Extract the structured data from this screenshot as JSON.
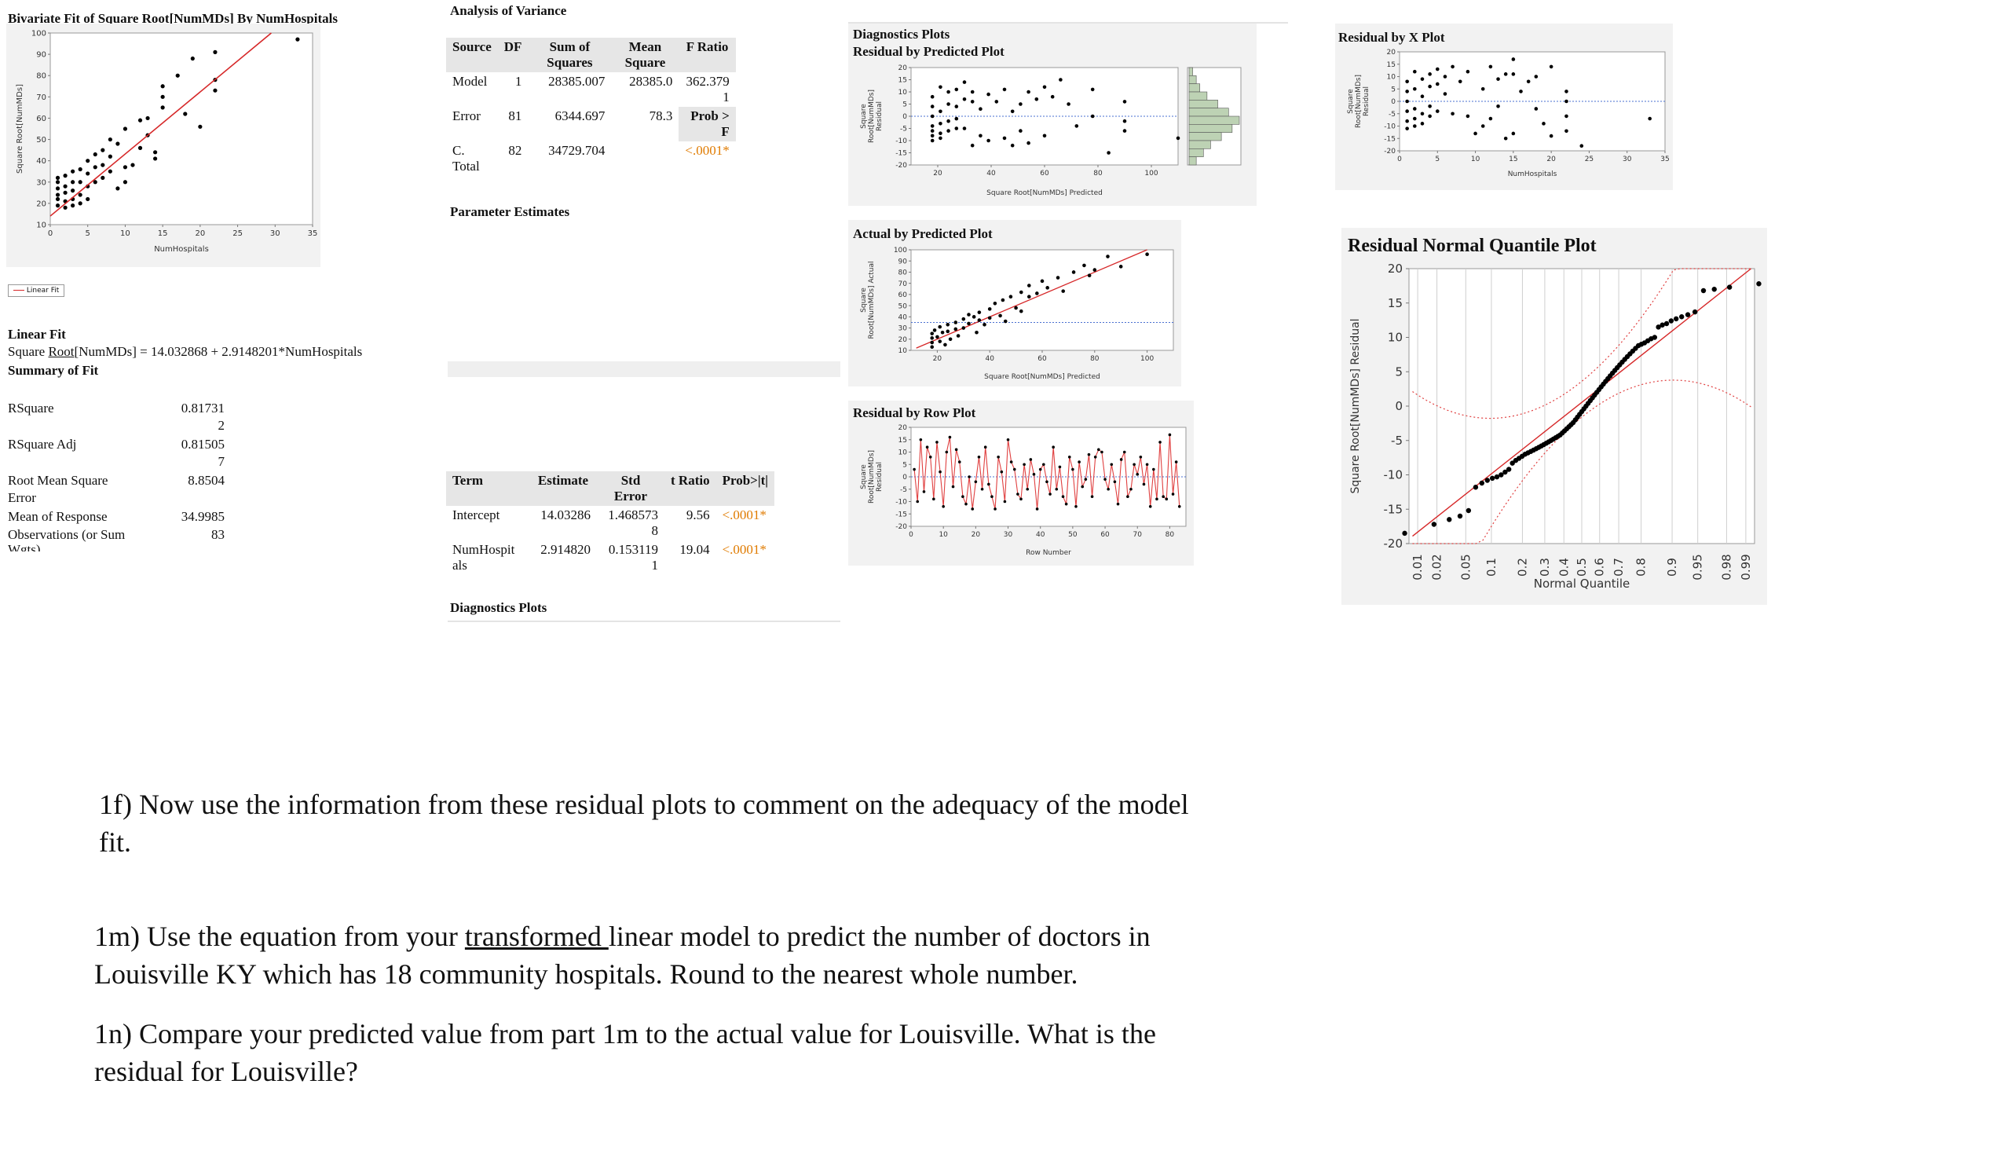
{
  "bivariate": {
    "title_pre": "Bivariate Fit of Square ",
    "title_root": "Root",
    "title_post": "[NumMDs] By NumHospitals",
    "ylabel": "Square Root[NumMDs]",
    "xlabel": "NumHospitals",
    "legend": "Linear Fit"
  },
  "linear_fit": {
    "heading": "Linear Fit",
    "eq_pre": "Square ",
    "eq_root": "Root",
    "eq_post": "[NumMDs] = 14.032868 + 2.9148201*NumHospitals",
    "summary_heading": "Summary of Fit"
  },
  "summary_of_fit": [
    {
      "label": "RSquare",
      "value": "0.81731",
      "value2": "2"
    },
    {
      "label": "RSquare Adj",
      "value": "0.81505",
      "value2": "7"
    },
    {
      "label": "Root Mean Square",
      "label2": "Error",
      "value": "8.8504"
    },
    {
      "label": "Mean of Response",
      "value": "34.9985"
    },
    {
      "label": "Observations (or Sum",
      "label2": "Wgts)",
      "value": "83"
    }
  ],
  "anova": {
    "title": "Analysis of Variance",
    "headers": [
      "Source",
      "DF",
      "Sum of Squares",
      "Mean Square",
      "F Ratio"
    ],
    "rows": [
      {
        "source": "Model",
        "df": "1",
        "ss": "28385.007",
        "ms": "28385.0",
        "f": "362.379",
        "f2": "1"
      },
      {
        "source": "Error",
        "df": "81",
        "ss": "6344.697",
        "ms": "78.3",
        "f": "Prob >",
        "f2": "F"
      },
      {
        "source": "C.",
        "source2": "Total",
        "df": "82",
        "ss": "34729.704",
        "ms": "",
        "f": "<.0001*"
      }
    ]
  },
  "param_title": "Parameter Estimates",
  "params": {
    "headers": [
      "Term",
      "Estimate",
      "Std Error",
      "t Ratio",
      "Prob>|t|"
    ],
    "rows": [
      {
        "term": "Intercept",
        "est": "14.03286",
        "se": "1.468573",
        "se2": "8",
        "t": "9.56",
        "p": "<.0001*"
      },
      {
        "term": "NumHospit",
        "term2": "als",
        "est": "2.914820",
        "se": "0.153119",
        "se2": "1",
        "t": "19.04",
        "p": "<.0001*"
      }
    ]
  },
  "diag_title_bottom": "Diagnostics Plots",
  "diag": {
    "title": "Diagnostics Plots",
    "res_pred_title": "Residual by Predicted Plot",
    "res_pred_ylabel": [
      "Square",
      "Root[NumMDs]",
      "Residual"
    ],
    "res_pred_xlabel": "Square Root[NumMDs] Predicted",
    "act_pred_title": "Actual by Predicted Plot",
    "act_pred_ylabel": [
      "Square",
      "Root[NumMDs] Actual"
    ],
    "act_pred_xlabel": "Square Root[NumMDs] Predicted",
    "res_row_title": "Residual by Row Plot",
    "res_row_ylabel": [
      "Square",
      "Root[NumMDs]",
      "Residual"
    ],
    "res_row_xlabel": "Row Number"
  },
  "res_x": {
    "title": "Residual by X Plot",
    "ylabel": [
      "Square",
      "Root[NumMDs]",
      "Residual"
    ],
    "xlabel": "NumHospitals"
  },
  "nq": {
    "title": "Residual Normal Quantile Plot",
    "ylabel": "Square Root[NumMDs] Residual",
    "xlabel": "Normal Quantile",
    "probs": [
      "0.01",
      "0.02",
      "0.05",
      "0.1",
      "0.2",
      "0.3",
      "0.4",
      "0.5",
      "0.6",
      "0.7",
      "0.8",
      "0.9",
      "0.95",
      "0.98",
      "0.99"
    ]
  },
  "questions": {
    "q1f_a": "1f) Now use the information from these residual plots to comment on the adequacy of the model",
    "q1f_b": "fit.",
    "q1m_a1": "1m) Use the equation from your ",
    "q1m_a2": "transformed ",
    "q1m_a3": "linear model to predict the number of doctors in",
    "q1m_b": "Louisville KY which has 18 community hospitals. Round to the nearest whole number.",
    "q1n_a": "1n) Compare your predicted value from part 1m to the actual value for Louisville. What is the",
    "q1n_b": "residual for Louisville?"
  },
  "chart_data": [
    {
      "type": "scatter",
      "ylabel": "Square Root[NumMDs]",
      "xlabel": "NumHospitals",
      "xlim": [
        0,
        35
      ],
      "ylim": [
        10,
        100
      ],
      "xticks": [
        0,
        5,
        10,
        15,
        20,
        25,
        30,
        35
      ],
      "yticks": [
        10,
        20,
        30,
        40,
        50,
        60,
        70,
        80,
        90,
        100
      ],
      "fit": {
        "intercept": 14.032868,
        "slope": 2.9148201
      },
      "points": [
        [
          1,
          32
        ],
        [
          1,
          30
        ],
        [
          1,
          27
        ],
        [
          1,
          24
        ],
        [
          1,
          22
        ],
        [
          1,
          19
        ],
        [
          2,
          33
        ],
        [
          2,
          28
        ],
        [
          2,
          25
        ],
        [
          2,
          21
        ],
        [
          2,
          18
        ],
        [
          3,
          35
        ],
        [
          3,
          30
        ],
        [
          3,
          26
        ],
        [
          3,
          22
        ],
        [
          3,
          19
        ],
        [
          4,
          36
        ],
        [
          4,
          30
        ],
        [
          4,
          24
        ],
        [
          4,
          20
        ],
        [
          5,
          40
        ],
        [
          5,
          34
        ],
        [
          5,
          28
        ],
        [
          5,
          22
        ],
        [
          6,
          43
        ],
        [
          6,
          37
        ],
        [
          6,
          30
        ],
        [
          7,
          45
        ],
        [
          7,
          38
        ],
        [
          7,
          32
        ],
        [
          8,
          50
        ],
        [
          8,
          42
        ],
        [
          8,
          35
        ],
        [
          9,
          48
        ],
        [
          9,
          27
        ],
        [
          10,
          55
        ],
        [
          10,
          37
        ],
        [
          10,
          30
        ],
        [
          11,
          38
        ],
        [
          12,
          59
        ],
        [
          12,
          46
        ],
        [
          13,
          60
        ],
        [
          13,
          52
        ],
        [
          14,
          44
        ],
        [
          14,
          41
        ],
        [
          15,
          75
        ],
        [
          15,
          70
        ],
        [
          15,
          65
        ],
        [
          17,
          80
        ],
        [
          18,
          62
        ],
        [
          19,
          88
        ],
        [
          20,
          56
        ],
        [
          22,
          78
        ],
        [
          22,
          73
        ],
        [
          22,
          91
        ],
        [
          33,
          97
        ]
      ]
    },
    {
      "type": "scatter",
      "title": "Residual by Predicted Plot",
      "xlabel": "Square Root[NumMDs] Predicted",
      "ylabel": "Square Root[NumMDs] Residual",
      "xlim": [
        10,
        110
      ],
      "ylim": [
        -20,
        20
      ],
      "xticks": [
        20,
        40,
        60,
        80,
        100
      ],
      "yticks": [
        -20,
        -15,
        -10,
        -5,
        0,
        5,
        10,
        15,
        20
      ],
      "points": [
        [
          18,
          8
        ],
        [
          18,
          4
        ],
        [
          18,
          0
        ],
        [
          18,
          -4
        ],
        [
          18,
          -6
        ],
        [
          18,
          -8
        ],
        [
          18,
          -10
        ],
        [
          21,
          12
        ],
        [
          21,
          2
        ],
        [
          21,
          -3
        ],
        [
          21,
          -7
        ],
        [
          21,
          -9
        ],
        [
          24,
          10
        ],
        [
          24,
          5
        ],
        [
          24,
          -2
        ],
        [
          24,
          -6
        ],
        [
          27,
          11
        ],
        [
          27,
          4
        ],
        [
          27,
          -1
        ],
        [
          27,
          -5
        ],
        [
          30,
          14
        ],
        [
          30,
          7
        ],
        [
          30,
          -5
        ],
        [
          33,
          10
        ],
        [
          33,
          6
        ],
        [
          33,
          -12
        ],
        [
          36,
          3
        ],
        [
          36,
          -8
        ],
        [
          39,
          9
        ],
        [
          39,
          -10
        ],
        [
          42,
          6
        ],
        [
          45,
          11
        ],
        [
          45,
          -9
        ],
        [
          48,
          2
        ],
        [
          48,
          -12
        ],
        [
          51,
          5
        ],
        [
          51,
          -6
        ],
        [
          54,
          10
        ],
        [
          54,
          -11
        ],
        [
          57,
          7
        ],
        [
          60,
          12
        ],
        [
          60,
          -8
        ],
        [
          63,
          8
        ],
        [
          66,
          15
        ],
        [
          69,
          5
        ],
        [
          72,
          -4
        ],
        [
          78,
          11
        ],
        [
          78,
          0
        ],
        [
          84,
          -15
        ],
        [
          90,
          6
        ],
        [
          90,
          -2
        ],
        [
          90,
          -6
        ],
        [
          110,
          -9
        ]
      ],
      "histogram_counts": [
        1,
        2,
        3,
        5,
        8,
        11,
        14,
        12,
        9,
        6,
        4,
        2
      ]
    },
    {
      "type": "scatter",
      "title": "Actual by Predicted Plot",
      "xlabel": "Square Root[NumMDs] Predicted",
      "ylabel": "Square Root[NumMDs] Actual",
      "xlim": [
        10,
        110
      ],
      "ylim": [
        10,
        100
      ],
      "xticks": [
        20,
        40,
        60,
        80,
        100
      ],
      "yticks": [
        10,
        20,
        30,
        40,
        50,
        60,
        70,
        80,
        90,
        100
      ],
      "mean_line": 35,
      "points": [
        [
          18,
          25
        ],
        [
          18,
          21
        ],
        [
          18,
          17
        ],
        [
          18,
          13
        ],
        [
          19,
          28
        ],
        [
          20,
          22
        ],
        [
          21,
          31
        ],
        [
          21,
          18
        ],
        [
          22,
          26
        ],
        [
          23,
          15
        ],
        [
          24,
          33
        ],
        [
          24,
          27
        ],
        [
          25,
          20
        ],
        [
          27,
          35
        ],
        [
          27,
          29
        ],
        [
          28,
          23
        ],
        [
          30,
          38
        ],
        [
          30,
          30
        ],
        [
          32,
          42
        ],
        [
          32,
          34
        ],
        [
          34,
          40
        ],
        [
          35,
          26
        ],
        [
          36,
          44
        ],
        [
          36,
          37
        ],
        [
          38,
          33
        ],
        [
          40,
          47
        ],
        [
          40,
          39
        ],
        [
          42,
          52
        ],
        [
          44,
          41
        ],
        [
          45,
          55
        ],
        [
          46,
          36
        ],
        [
          48,
          58
        ],
        [
          50,
          48
        ],
        [
          52,
          62
        ],
        [
          52,
          45
        ],
        [
          55,
          68
        ],
        [
          55,
          58
        ],
        [
          58,
          61
        ],
        [
          60,
          72
        ],
        [
          62,
          66
        ],
        [
          66,
          75
        ],
        [
          68,
          63
        ],
        [
          72,
          80
        ],
        [
          76,
          86
        ],
        [
          78,
          77
        ],
        [
          80,
          82
        ],
        [
          85,
          94
        ],
        [
          90,
          85
        ],
        [
          100,
          96
        ]
      ]
    },
    {
      "type": "line",
      "title": "Residual by Row Plot",
      "xlabel": "Row Number",
      "ylabel": "Square Root[NumMDs] Residual",
      "xlim": [
        0,
        85
      ],
      "ylim": [
        -20,
        20
      ],
      "xticks": [
        0,
        10,
        20,
        30,
        40,
        50,
        60,
        70,
        80
      ],
      "yticks": [
        -20,
        -15,
        -10,
        -5,
        0,
        5,
        10,
        15,
        20
      ],
      "values": [
        3,
        -10,
        15,
        -6,
        12,
        8,
        -9,
        14,
        2,
        -12,
        10,
        16,
        -4,
        11,
        6,
        -8,
        -11,
        0,
        -13,
        -2,
        8,
        -5,
        12,
        -3,
        -8,
        -13,
        8,
        2,
        -10,
        15,
        6,
        3,
        -7,
        -9,
        5,
        -5,
        7,
        1,
        -13,
        3,
        5,
        -2,
        -7,
        12,
        -5,
        4,
        -8,
        -11,
        8,
        3,
        -12,
        6,
        -4,
        -1,
        9,
        -8,
        8,
        11,
        10,
        -1,
        -5,
        5,
        -2,
        -11,
        7,
        10,
        -8,
        -5,
        5,
        1,
        8,
        -3,
        5,
        -12,
        3,
        -9,
        14,
        -8,
        -9,
        17,
        -7,
        6,
        -12
      ]
    },
    {
      "type": "scatter",
      "title": "Residual by X Plot",
      "xlabel": "NumHospitals",
      "ylabel": "Square Root[NumMDs] Residual",
      "xlim": [
        0,
        35
      ],
      "ylim": [
        -20,
        20
      ],
      "xticks": [
        0,
        5,
        10,
        15,
        20,
        25,
        30,
        35
      ],
      "yticks": [
        -20,
        -15,
        -10,
        -5,
        0,
        5,
        10,
        15,
        20
      ],
      "points": [
        [
          1,
          8
        ],
        [
          1,
          4
        ],
        [
          1,
          0
        ],
        [
          1,
          -4
        ],
        [
          1,
          -8
        ],
        [
          1,
          -11
        ],
        [
          2,
          12
        ],
        [
          2,
          5
        ],
        [
          2,
          -3
        ],
        [
          2,
          -7
        ],
        [
          2,
          -10
        ],
        [
          3,
          9
        ],
        [
          3,
          2
        ],
        [
          3,
          -5
        ],
        [
          3,
          -9
        ],
        [
          4,
          11
        ],
        [
          4,
          6
        ],
        [
          4,
          -2
        ],
        [
          4,
          -6
        ],
        [
          5,
          13
        ],
        [
          5,
          7
        ],
        [
          5,
          -4
        ],
        [
          6,
          10
        ],
        [
          6,
          3
        ],
        [
          7,
          14
        ],
        [
          7,
          -5
        ],
        [
          8,
          8
        ],
        [
          9,
          12
        ],
        [
          9,
          -6
        ],
        [
          10,
          -13
        ],
        [
          11,
          5
        ],
        [
          11,
          -10
        ],
        [
          12,
          14
        ],
        [
          12,
          -7
        ],
        [
          13,
          9
        ],
        [
          13,
          -2
        ],
        [
          14,
          11
        ],
        [
          14,
          -15
        ],
        [
          15,
          17
        ],
        [
          15,
          11
        ],
        [
          15,
          -13
        ],
        [
          16,
          4
        ],
        [
          17,
          8
        ],
        [
          18,
          10
        ],
        [
          18,
          -3
        ],
        [
          19,
          -9
        ],
        [
          20,
          14
        ],
        [
          20,
          -14
        ],
        [
          22,
          4
        ],
        [
          22,
          0
        ],
        [
          22,
          -6
        ],
        [
          22,
          -12
        ],
        [
          24,
          -18
        ],
        [
          33,
          -7
        ]
      ]
    },
    {
      "type": "scatter",
      "title": "Residual Normal Quantile Plot",
      "xlabel": "Normal Quantile",
      "ylabel": "Square Root[NumMDs] Residual",
      "ylim": [
        -20,
        20
      ],
      "yticks": [
        -20,
        -15,
        -10,
        -5,
        0,
        5,
        10,
        15,
        20
      ],
      "xtick_probs": [
        0.01,
        0.02,
        0.05,
        0.1,
        0.2,
        0.3,
        0.4,
        0.5,
        0.6,
        0.7,
        0.8,
        0.9,
        0.95,
        0.98,
        0.99
      ],
      "residuals_sorted": [
        -18.5,
        -17.2,
        -16.5,
        -16.0,
        -15.2,
        -11.8,
        -11.2,
        -10.8,
        -10.5,
        -10.3,
        -10.0,
        -9.6,
        -9.2,
        -8.3,
        -7.9,
        -7.6,
        -7.3,
        -7.0,
        -6.8,
        -6.6,
        -6.4,
        -6.2,
        -6.0,
        -5.8,
        -5.6,
        -5.4,
        -5.2,
        -5.0,
        -4.8,
        -4.6,
        -4.4,
        -4.2,
        -3.9,
        -3.6,
        -3.3,
        -3.0,
        -2.7,
        -2.4,
        -2.0,
        -1.6,
        -1.2,
        -0.8,
        -0.4,
        0.0,
        0.4,
        0.8,
        1.2,
        1.6,
        2.0,
        2.4,
        2.8,
        3.2,
        3.6,
        4.0,
        4.4,
        4.8,
        5.2,
        5.6,
        6.0,
        6.4,
        6.8,
        7.2,
        7.6,
        8.0,
        8.4,
        8.8,
        9.0,
        9.2,
        9.5,
        9.8,
        10.0,
        11.5,
        11.8,
        12.0,
        12.4,
        12.7,
        13.0,
        13.3,
        13.7,
        16.8,
        17.0,
        17.3,
        17.8
      ]
    }
  ]
}
